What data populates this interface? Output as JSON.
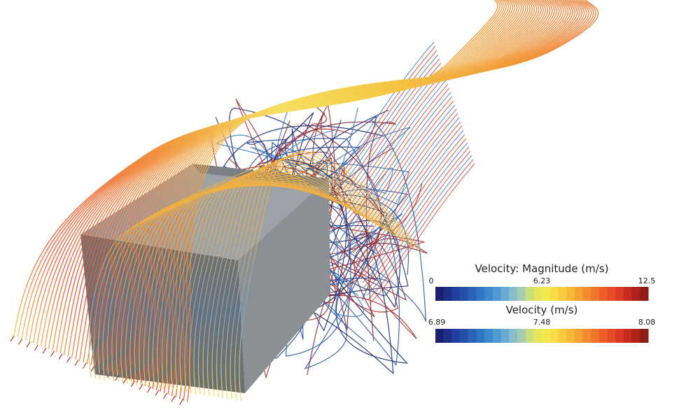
{
  "legends": [
    {
      "title": "Velocity: Magnitude (m/s)",
      "labels": [
        0,
        6.23,
        12.5
      ]
    },
    {
      "title": "Velocity (m/s)",
      "labels": [
        6.89,
        7.48,
        8.08
      ]
    }
  ]
}
